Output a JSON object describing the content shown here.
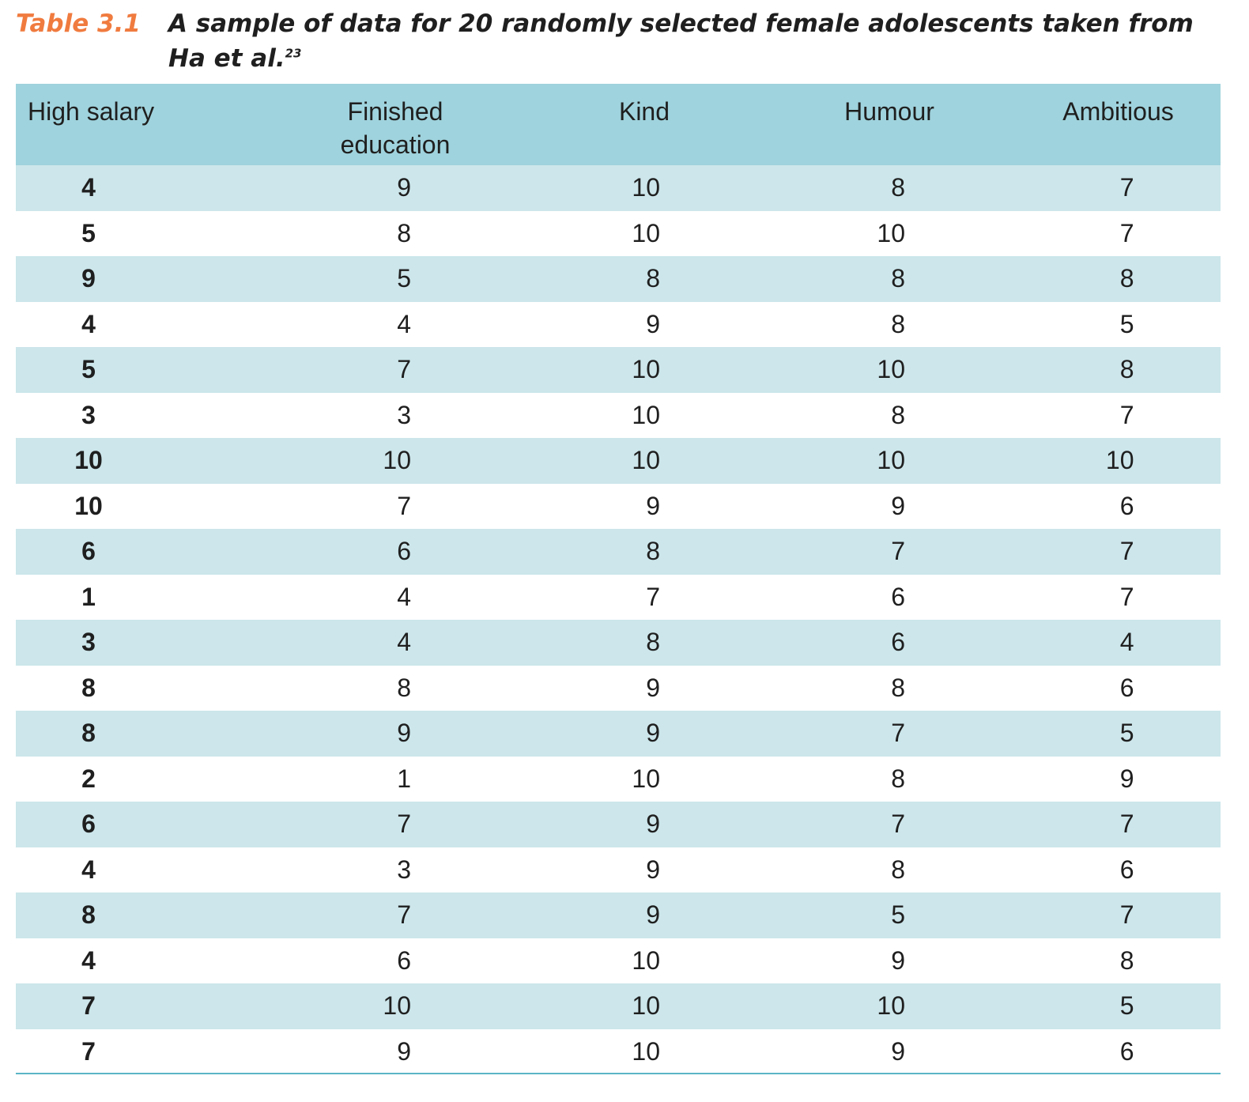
{
  "caption": {
    "label": "Table 3.1",
    "text_line1": "A sample of data for 20 randomly selected female adolescents taken from",
    "text_line2": "Ha et al.",
    "superscript": "23"
  },
  "table": {
    "headers": [
      "High salary",
      "Finished education",
      "Kind",
      "Humour",
      "Ambitious"
    ],
    "rows": [
      [
        "4",
        "9",
        "10",
        "8",
        "7"
      ],
      [
        "5",
        "8",
        "10",
        "10",
        "7"
      ],
      [
        "9",
        "5",
        "8",
        "8",
        "8"
      ],
      [
        "4",
        "4",
        "9",
        "8",
        "5"
      ],
      [
        "5",
        "7",
        "10",
        "10",
        "8"
      ],
      [
        "3",
        "3",
        "10",
        "8",
        "7"
      ],
      [
        "10",
        "10",
        "10",
        "10",
        "10"
      ],
      [
        "10",
        "7",
        "9",
        "9",
        "6"
      ],
      [
        "6",
        "6",
        "8",
        "7",
        "7"
      ],
      [
        "1",
        "4",
        "7",
        "6",
        "7"
      ],
      [
        "3",
        "4",
        "8",
        "6",
        "4"
      ],
      [
        "8",
        "8",
        "9",
        "8",
        "6"
      ],
      [
        "8",
        "9",
        "9",
        "7",
        "5"
      ],
      [
        "2",
        "1",
        "10",
        "8",
        "9"
      ],
      [
        "6",
        "7",
        "9",
        "7",
        "7"
      ],
      [
        "4",
        "3",
        "9",
        "8",
        "6"
      ],
      [
        "8",
        "7",
        "9",
        "5",
        "7"
      ],
      [
        "4",
        "6",
        "10",
        "9",
        "8"
      ],
      [
        "7",
        "10",
        "10",
        "10",
        "5"
      ],
      [
        "7",
        "9",
        "10",
        "9",
        "6"
      ]
    ]
  },
  "colors": {
    "caption_label": "#f07b3f",
    "header_bg": "#9fd3dd",
    "stripe_bg": "#cce6eb",
    "rule": "#5cb6c6"
  }
}
